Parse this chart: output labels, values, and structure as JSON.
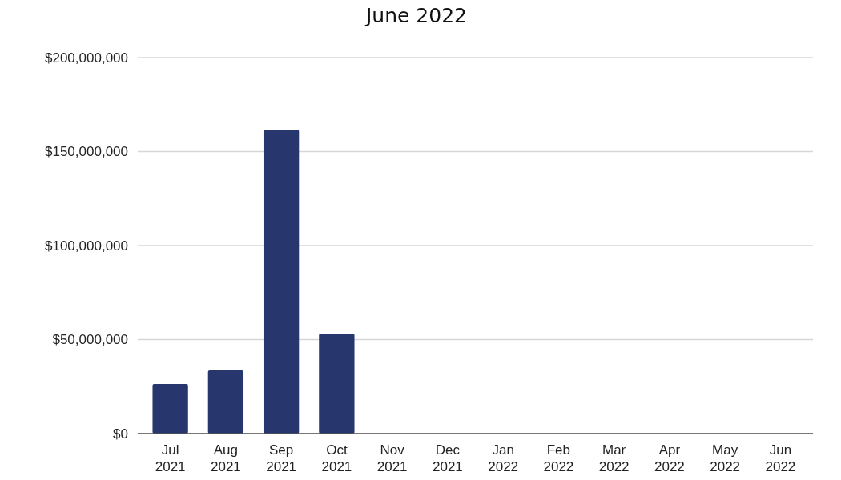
{
  "chart_data": {
    "type": "bar",
    "title": "June 2022",
    "categories": [
      "Jul 2021",
      "Aug 2021",
      "Sep 2021",
      "Oct 2021",
      "Nov 2021",
      "Dec 2021",
      "Jan 2022",
      "Feb 2022",
      "Mar 2022",
      "Apr 2022",
      "May 2022",
      "Jun 2022"
    ],
    "values": [
      26400000,
      33600000,
      161700000,
      53200000,
      0,
      0,
      0,
      0,
      0,
      0,
      0,
      0
    ],
    "color": "#27376e",
    "ylim": [
      0,
      200000000
    ],
    "yticks": [
      {
        "value": 0,
        "label": "$0"
      },
      {
        "value": 50000000,
        "label": "$50,000,000"
      },
      {
        "value": 100000000,
        "label": "$100,000,000"
      },
      {
        "value": 150000000,
        "label": "$150,000,000"
      },
      {
        "value": 200000000,
        "label": "$200,000,000"
      }
    ],
    "grid": "y"
  }
}
